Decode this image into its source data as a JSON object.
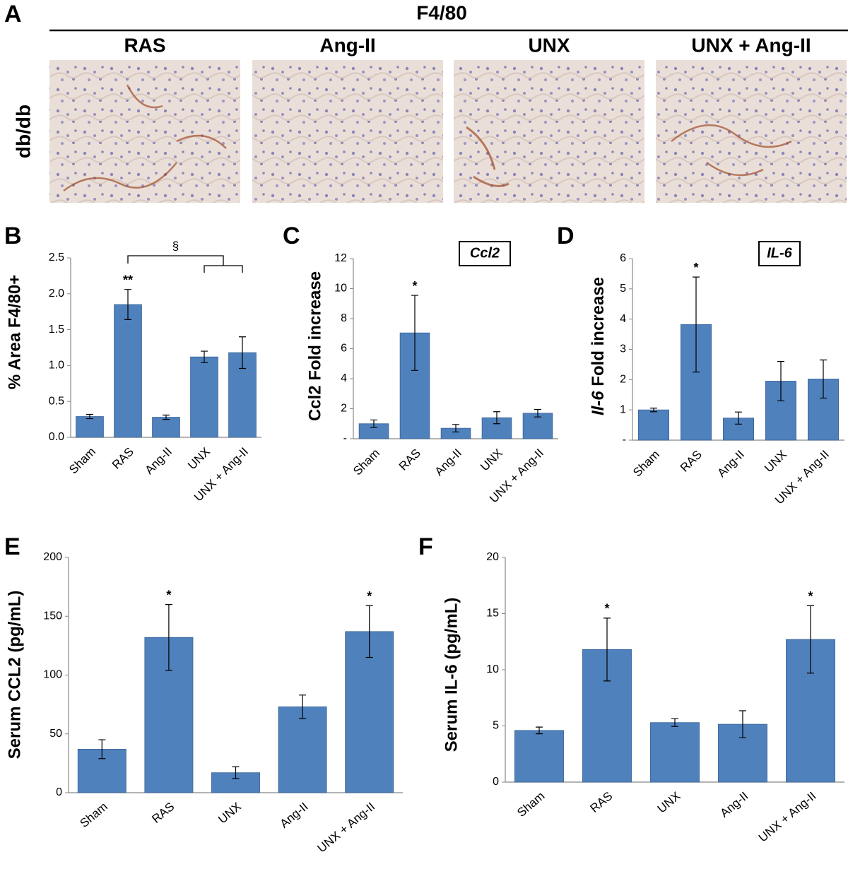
{
  "panel_a": {
    "label": "A",
    "stain": "F4/80",
    "row_label": "db/db",
    "columns": [
      "RAS",
      "Ang-II",
      "UNX",
      "UNX + Ang-II"
    ]
  },
  "chart_data": [
    {
      "type": "bar",
      "panel": "B",
      "ylabel": "% Area F4/80+",
      "color": "#4f81bd",
      "categories": [
        "Sham",
        "RAS",
        "Ang-II",
        "UNX",
        "UNX + Ang-II"
      ],
      "values": [
        0.29,
        1.85,
        0.28,
        1.12,
        1.18
      ],
      "errors": [
        0.03,
        0.21,
        0.03,
        0.08,
        0.22
      ],
      "significance": [
        null,
        "**",
        null,
        null,
        null
      ],
      "bracket_label": "§",
      "ylim": [
        0,
        2.5
      ],
      "yticks": [
        {
          "value": 0,
          "label": "0.0"
        },
        0.5,
        {
          "value": 1,
          "label": "1.0"
        },
        1.5,
        {
          "value": 2,
          "label": "2.0"
        },
        2.5
      ]
    },
    {
      "type": "bar",
      "panel": "C",
      "ylabel": "Ccl2 Fold increase",
      "gene_label": "Ccl2",
      "color": "#4f81bd",
      "categories": [
        "Sham",
        "RAS",
        "Ang-II",
        "UNX",
        "UNX + Ang-II"
      ],
      "values": [
        1.0,
        7.05,
        0.7,
        1.4,
        1.7
      ],
      "errors": [
        0.25,
        2.5,
        0.25,
        0.4,
        0.25
      ],
      "significance": [
        null,
        "*",
        null,
        null,
        null
      ],
      "ylim": [
        0,
        12
      ],
      "yticks": [
        {
          "value": 0,
          "label": "-"
        },
        2,
        4,
        6,
        8,
        10,
        12
      ]
    },
    {
      "type": "bar",
      "panel": "D",
      "ylabel": [
        "Il-6",
        " Fold increase"
      ],
      "ylabel_italic": [
        true,
        false
      ],
      "gene_label": "IL-6",
      "color": "#4f81bd",
      "categories": [
        "Sham",
        "RAS",
        "Ang-II",
        "UNX",
        "UNX + Ang-II"
      ],
      "values": [
        1.0,
        3.82,
        0.73,
        1.95,
        2.02
      ],
      "errors": [
        0.06,
        1.57,
        0.2,
        0.65,
        0.63
      ],
      "significance": [
        null,
        "*",
        null,
        null,
        null
      ],
      "ylim": [
        0,
        6
      ],
      "yticks": [
        {
          "value": 0,
          "label": "-"
        },
        1,
        2,
        3,
        4,
        5,
        6
      ]
    },
    {
      "type": "bar",
      "panel": "E",
      "ylabel": "Serum CCL2 (pg/mL)",
      "color": "#4f81bd",
      "categories": [
        "Sham",
        "RAS",
        "UNX",
        "Ang-II",
        "UNX + Ang-II"
      ],
      "values": [
        37,
        132,
        17,
        73,
        137
      ],
      "errors": [
        8,
        28,
        5,
        10,
        22
      ],
      "significance": [
        null,
        "*",
        null,
        null,
        "*"
      ],
      "ylim": [
        0,
        200
      ],
      "yticks": [
        0,
        50,
        100,
        150,
        200
      ]
    },
    {
      "type": "bar",
      "panel": "F",
      "ylabel": "Serum IL-6 (pg/mL)",
      "color": "#4f81bd",
      "categories": [
        "Sham",
        "RAS",
        "UNX",
        "Ang-II",
        "UNX + Ang-II"
      ],
      "values": [
        4.6,
        11.8,
        5.3,
        5.15,
        12.7
      ],
      "errors": [
        0.3,
        2.8,
        0.35,
        1.2,
        3.0
      ],
      "significance": [
        null,
        "*",
        null,
        null,
        "*"
      ],
      "ylim": [
        0,
        20
      ],
      "yticks": [
        0,
        5,
        10,
        15,
        20
      ]
    }
  ]
}
